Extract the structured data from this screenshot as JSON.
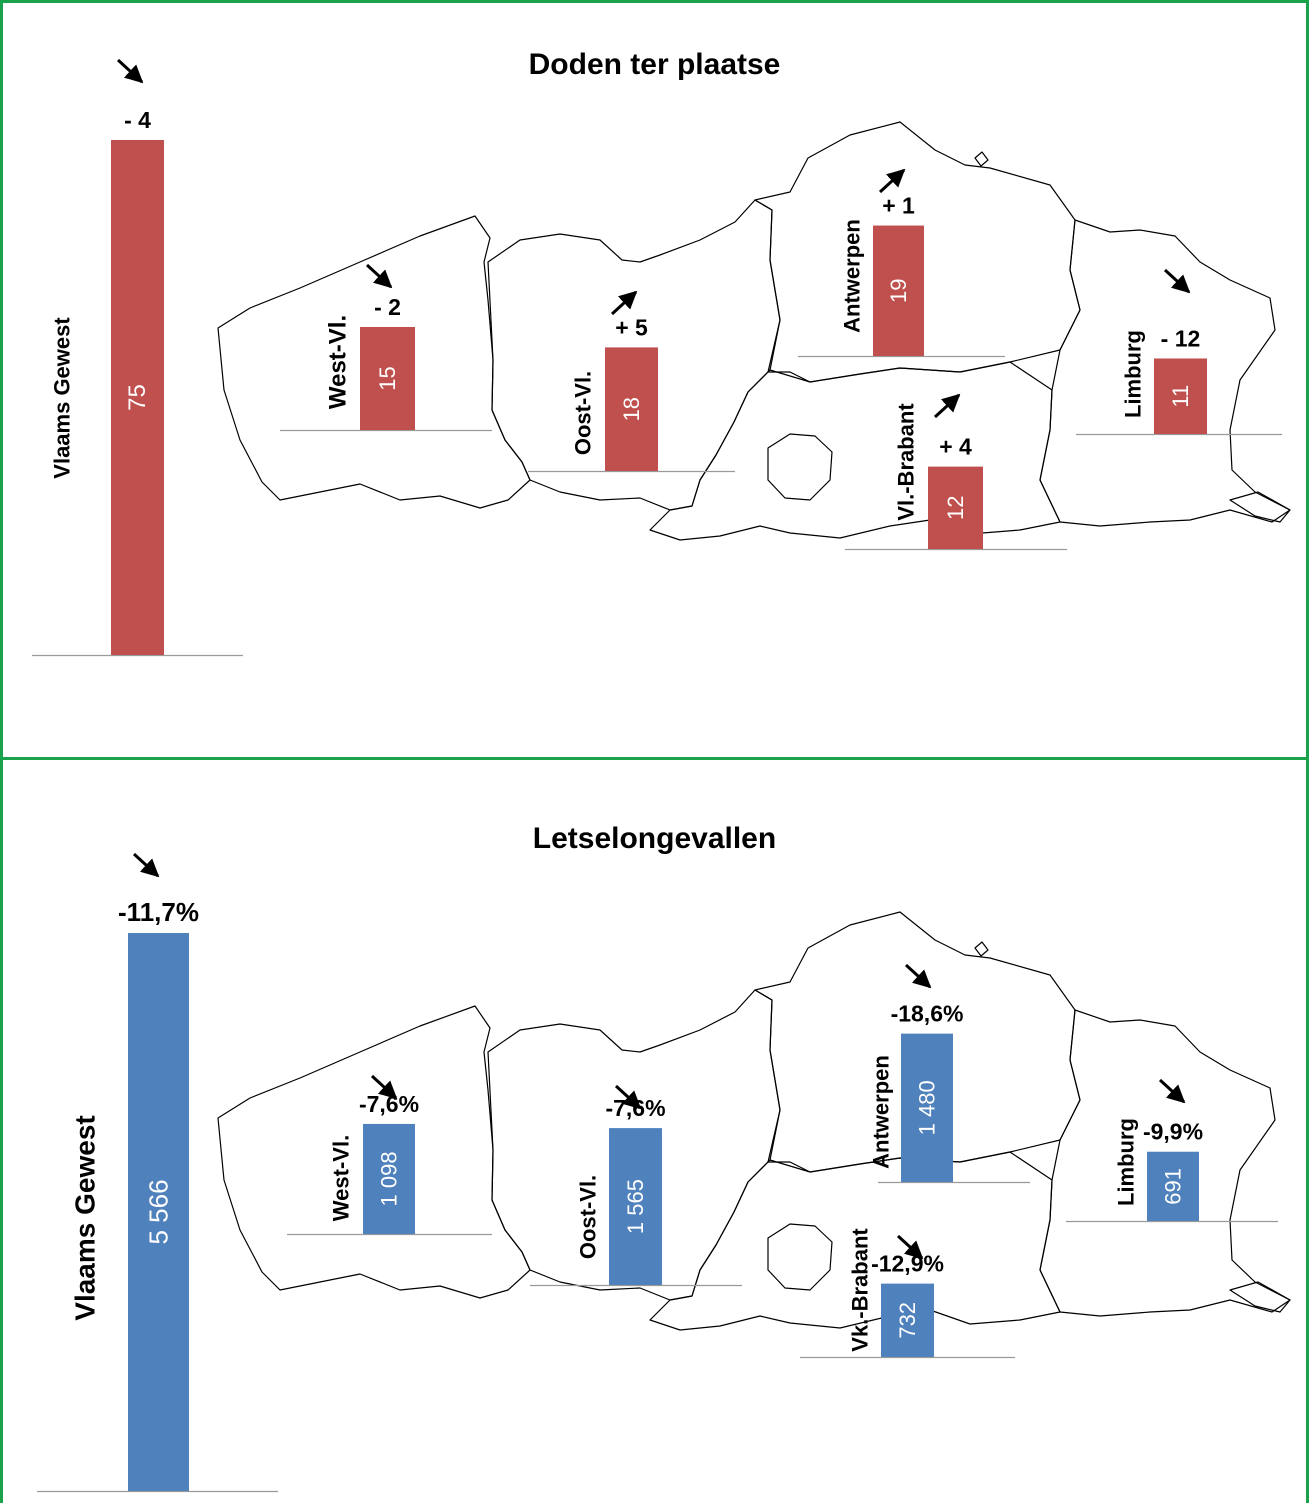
{
  "chart_data": [
    {
      "type": "bar",
      "title": "Doden ter plaatse",
      "color": "#c0504d",
      "categories": [
        "Vlaams Gewest",
        "West-Vl.",
        "Oost-Vl.",
        "Antwerpen",
        "Vl.-Brabant",
        "Limburg"
      ],
      "values": [
        75,
        15,
        18,
        19,
        12,
        11
      ],
      "value_labels": [
        "75",
        "15",
        "18",
        "19",
        "12",
        "11"
      ],
      "changes": [
        "- 4",
        "- 2",
        "+ 5",
        "+ 1",
        "+ 4",
        "- 12"
      ],
      "trend": [
        "down",
        "down",
        "up",
        "up",
        "up",
        "down"
      ]
    },
    {
      "type": "bar",
      "title": "Letselongevallen",
      "color": "#4f81bd",
      "categories": [
        "Vlaams Gewest",
        "West-Vl.",
        "Oost-Vl.",
        "Antwerpen",
        "Vk.-Brabant",
        "Limburg"
      ],
      "values": [
        5566,
        1098,
        1565,
        1480,
        732,
        691
      ],
      "value_labels": [
        "5 566",
        "1 098",
        "1 565",
        "1 480",
        "732",
        "691"
      ],
      "changes": [
        "-11,7%",
        "-7,6%",
        "-7,6%",
        "-18,6%",
        "-12,9%",
        "-9,9%"
      ],
      "trend": [
        "down",
        "down",
        "down",
        "down",
        "down",
        "down"
      ]
    }
  ]
}
